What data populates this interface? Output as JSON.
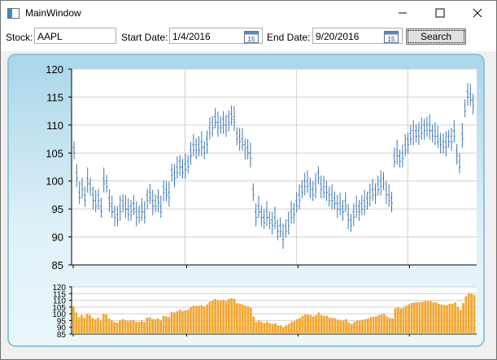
{
  "window": {
    "title": "MainWindow"
  },
  "toolbar": {
    "stock_label": "Stock:",
    "stock_value": "AAPL",
    "start_label": "Start Date:",
    "start_value": "1/4/2016",
    "end_label": "End Date:",
    "end_value": "9/20/2016",
    "search_label": "Search",
    "calendar_day": "15"
  },
  "colors": {
    "price": "#3a78b5",
    "volume": "#f2a72f",
    "panel": "#a9d6e8"
  },
  "chart_data": [
    {
      "type": "ohlc",
      "ylim": [
        85,
        120
      ],
      "yticks": [
        "85",
        "90",
        "95",
        "100",
        "105",
        "110",
        "115",
        "120"
      ],
      "grid": true,
      "series": [
        {
          "values": [
            105.5,
            101,
            97.5,
            99,
            97,
            100,
            99,
            97,
            96,
            97,
            95,
            100,
            99.5,
            96.5,
            95,
            94,
            93.5,
            95,
            96,
            95.5,
            94.5,
            95,
            95.5,
            94,
            94,
            95,
            94,
            97,
            97.5,
            96,
            96,
            96.5,
            95,
            98.5,
            98,
            97.5,
            101.5,
            101,
            102,
            103,
            102,
            102.5,
            103,
            105,
            106,
            106,
            106,
            106.5,
            105.5,
            107,
            109,
            110,
            111,
            110,
            110,
            110.5,
            109.5,
            111,
            111.5,
            111,
            108,
            107.5,
            107,
            106,
            105.5,
            104.5,
            98,
            94,
            95,
            94,
            93,
            94,
            93,
            92.5,
            93,
            91.5,
            91.5,
            90,
            91.5,
            92.5,
            94,
            94.5,
            96,
            97,
            98.5,
            99.5,
            99.5,
            99,
            98,
            99,
            101,
            99,
            98.5,
            98.5,
            97,
            97,
            96.5,
            95.5,
            95.5,
            95,
            96,
            93.5,
            92.5,
            94,
            95,
            95,
            95.5,
            96,
            96.5,
            97.5,
            98,
            98,
            99,
            99.5,
            100,
            98,
            97,
            96.5,
            104,
            105,
            104,
            104.5,
            106,
            107,
            108,
            108.5,
            108.5,
            108.5,
            109,
            109.5,
            109.5,
            109.5,
            108.5,
            108.5,
            107.5,
            107,
            106.5,
            106.5,
            107.5,
            107.5,
            108.5,
            105,
            103,
            108,
            113,
            115.5,
            115,
            114
          ]
        }
      ]
    },
    {
      "type": "bar",
      "ylim": [
        85,
        120
      ],
      "yticks": [
        "85",
        "90",
        "95",
        "100",
        "105",
        "110",
        "115",
        "120"
      ],
      "grid": true,
      "series": [
        {
          "values": [
            105.5,
            101,
            97.5,
            99,
            97,
            100,
            99,
            97,
            96,
            97,
            95,
            100,
            99.5,
            96.5,
            95,
            94,
            93.5,
            95,
            96,
            95.5,
            94.5,
            95,
            95.5,
            94,
            94,
            95,
            94,
            97,
            97.5,
            96,
            96,
            96.5,
            95,
            98.5,
            98,
            97.5,
            101.5,
            101,
            102,
            103,
            102,
            102.5,
            103,
            105,
            106,
            106,
            106,
            106.5,
            105.5,
            107,
            109,
            110,
            111,
            110,
            110,
            110.5,
            109.5,
            111,
            111.5,
            111,
            108,
            107.5,
            107,
            106,
            105.5,
            104.5,
            98,
            94,
            95,
            94,
            93,
            94,
            93,
            92.5,
            93,
            91.5,
            91.5,
            90,
            91.5,
            92.5,
            94,
            94.5,
            96,
            97,
            98.5,
            99.5,
            99.5,
            99,
            98,
            99,
            101,
            99,
            98.5,
            98.5,
            97,
            97,
            96.5,
            95.5,
            95.5,
            95,
            96,
            93.5,
            92.5,
            94,
            95,
            95,
            95.5,
            96,
            96.5,
            97.5,
            98,
            98,
            99,
            99.5,
            100,
            98,
            97,
            96.5,
            104,
            105,
            104,
            104.5,
            106,
            107,
            108,
            108.5,
            108.5,
            108.5,
            109,
            109.5,
            109.5,
            109.5,
            108.5,
            108.5,
            107.5,
            107,
            106.5,
            106.5,
            107.5,
            107.5,
            108.5,
            105,
            103,
            108,
            113,
            115.5,
            115,
            114
          ]
        }
      ]
    }
  ]
}
